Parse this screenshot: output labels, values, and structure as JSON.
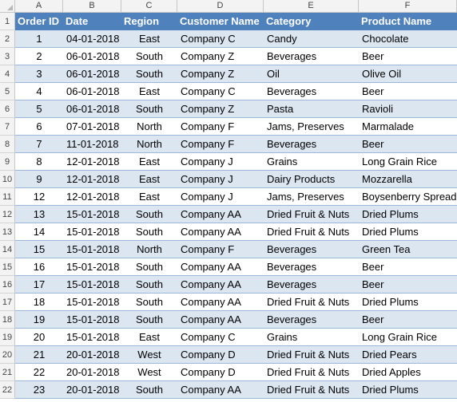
{
  "columns": [
    "A",
    "B",
    "C",
    "D",
    "E",
    "F"
  ],
  "headers": [
    "Order ID",
    "Date",
    "Region",
    "Customer Name",
    "Category",
    "Product Name"
  ],
  "row_numbers": [
    "1",
    "2",
    "3",
    "4",
    "5",
    "6",
    "7",
    "8",
    "9",
    "10",
    "11",
    "12",
    "13",
    "14",
    "15",
    "16",
    "17",
    "18",
    "19",
    "20",
    "21",
    "22"
  ],
  "rows": [
    [
      "1",
      "04-01-2018",
      "East",
      "Company C",
      "Candy",
      "Chocolate"
    ],
    [
      "2",
      "06-01-2018",
      "South",
      "Company Z",
      "Beverages",
      "Beer"
    ],
    [
      "3",
      "06-01-2018",
      "South",
      "Company Z",
      "Oil",
      "Olive Oil"
    ],
    [
      "4",
      "06-01-2018",
      "East",
      "Company C",
      "Beverages",
      "Beer"
    ],
    [
      "5",
      "06-01-2018",
      "South",
      "Company Z",
      "Pasta",
      "Ravioli"
    ],
    [
      "6",
      "07-01-2018",
      "North",
      "Company F",
      "Jams, Preserves",
      "Marmalade"
    ],
    [
      "7",
      "11-01-2018",
      "North",
      "Company F",
      "Beverages",
      "Beer"
    ],
    [
      "8",
      "12-01-2018",
      "East",
      "Company J",
      "Grains",
      "Long Grain Rice"
    ],
    [
      "9",
      "12-01-2018",
      "East",
      "Company J",
      "Dairy Products",
      "Mozzarella"
    ],
    [
      "12",
      "12-01-2018",
      "East",
      "Company J",
      "Jams, Preserves",
      "Boysenberry Spread"
    ],
    [
      "13",
      "15-01-2018",
      "South",
      "Company AA",
      "Dried Fruit & Nuts",
      "Dried Plums"
    ],
    [
      "14",
      "15-01-2018",
      "South",
      "Company AA",
      "Dried Fruit & Nuts",
      "Dried Plums"
    ],
    [
      "15",
      "15-01-2018",
      "North",
      "Company F",
      "Beverages",
      "Green Tea"
    ],
    [
      "16",
      "15-01-2018",
      "South",
      "Company AA",
      "Beverages",
      "Beer"
    ],
    [
      "17",
      "15-01-2018",
      "South",
      "Company AA",
      "Beverages",
      "Beer"
    ],
    [
      "18",
      "15-01-2018",
      "South",
      "Company AA",
      "Dried Fruit & Nuts",
      "Dried Plums"
    ],
    [
      "19",
      "15-01-2018",
      "South",
      "Company AA",
      "Beverages",
      "Beer"
    ],
    [
      "20",
      "15-01-2018",
      "East",
      "Company C",
      "Grains",
      "Long Grain Rice"
    ],
    [
      "21",
      "20-01-2018",
      "West",
      "Company D",
      "Dried Fruit & Nuts",
      "Dried Pears"
    ],
    [
      "22",
      "20-01-2018",
      "West",
      "Company D",
      "Dried Fruit & Nuts",
      "Dried Apples"
    ],
    [
      "23",
      "20-01-2018",
      "South",
      "Company AA",
      "Dried Fruit & Nuts",
      "Dried Plums"
    ]
  ],
  "colors": {
    "header_bg": "#4f81bd",
    "band_bg": "#dce6f1",
    "header_text": "#ffffff"
  }
}
